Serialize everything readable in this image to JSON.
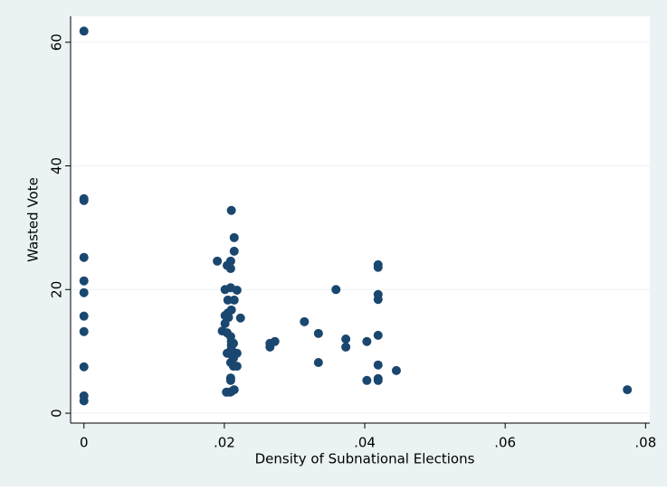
{
  "chart_data": {
    "type": "scatter",
    "x_label": "Density of Subnational Elections",
    "y_label": "Wasted Vote",
    "color": "#1a476f",
    "grid": true,
    "xlim": [
      -0.0019,
      0.0806
    ],
    "ylim": [
      -1.6,
      64.2
    ],
    "xticks": [
      0,
      {
        "value": 0.02,
        "label": ".02"
      },
      {
        "value": 0.04,
        "label": ".04"
      },
      {
        "value": 0.06,
        "label": ".06"
      },
      {
        "value": 0.08,
        "label": ".08"
      }
    ],
    "yticks": [
      0,
      20,
      40,
      60
    ],
    "series": [
      {
        "name": "Wasted Vote",
        "x": [
          0,
          0,
          0,
          0,
          0,
          0,
          0,
          0,
          0,
          0,
          0,
          0.019,
          0.021,
          0.0214,
          0.0214,
          0.0209,
          0.0209,
          0.0209,
          0.0204,
          0.0201,
          0.0218,
          0.0205,
          0.0214,
          0.0205,
          0.021,
          0.0201,
          0.0223,
          0.0206,
          0.0201,
          0.0197,
          0.0204,
          0.0209,
          0.021,
          0.021,
          0.021,
          0.0213,
          0.0204,
          0.0218,
          0.021,
          0.0213,
          0.0209,
          0.0213,
          0.0218,
          0.0209,
          0.0209,
          0.0203,
          0.021,
          0.0214,
          0.0208,
          0.0265,
          0.0265,
          0.0272,
          0.0314,
          0.0334,
          0.0334,
          0.0359,
          0.0373,
          0.0373,
          0.0403,
          0.0403,
          0.0419,
          0.0419,
          0.0419,
          0.0419,
          0.0419,
          0.0419,
          0.0419,
          0.0419,
          0.0445,
          0.0774
        ],
        "values": [
          61.8,
          34.7,
          34.4,
          25.2,
          21.4,
          19.5,
          15.7,
          13.2,
          7.5,
          2.8,
          2.0,
          24.6,
          32.8,
          28.4,
          26.2,
          24.6,
          23.4,
          20.3,
          23.9,
          20.0,
          19.9,
          18.3,
          18.3,
          16.2,
          16.7,
          15.8,
          15.4,
          15.5,
          14.5,
          13.3,
          13.0,
          12.4,
          11.6,
          11.0,
          10.4,
          11.3,
          9.7,
          9.7,
          9.5,
          8.9,
          8.2,
          7.6,
          7.6,
          5.7,
          5.3,
          3.4,
          3.5,
          3.8,
          3.4,
          11.3,
          10.7,
          11.6,
          14.8,
          12.9,
          8.2,
          20.0,
          12.0,
          10.7,
          11.6,
          5.3,
          24.0,
          23.6,
          19.2,
          18.4,
          12.6,
          7.8,
          5.6,
          5.3,
          6.9,
          3.8
        ]
      }
    ]
  }
}
